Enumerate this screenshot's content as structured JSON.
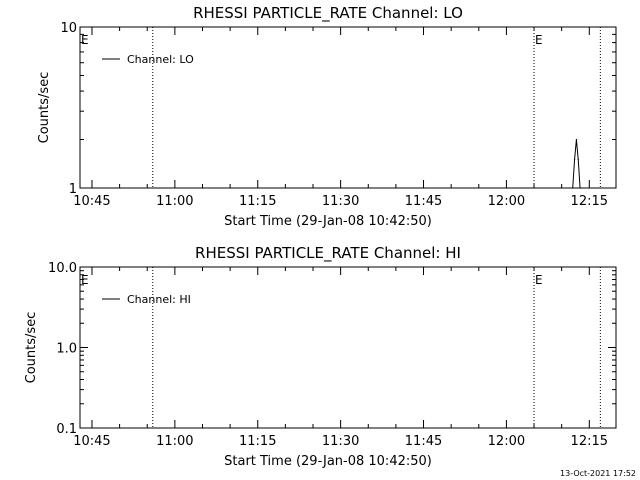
{
  "chart_data": [
    {
      "type": "line",
      "title": "RHESSI PARTICLE_RATE Channel: LO",
      "ylabel": "Counts/sec",
      "xlabel": "Start Time (29-Jan-08 10:42:50)",
      "y_scale": "log",
      "ylim": [
        1,
        10
      ],
      "y_ticks": [
        {
          "value": 1,
          "label": "1"
        },
        {
          "value": 10,
          "label": "10"
        }
      ],
      "xlim_minutes_after_start": [
        0,
        97
      ],
      "x_ticks": [
        "10:45",
        "11:00",
        "11:15",
        "11:30",
        "11:45",
        "12:00",
        "12:15"
      ],
      "legend": {
        "label": "Channel: LO",
        "position": "top-left"
      },
      "flag_marks": [
        {
          "label": "E",
          "time": "10:42:50"
        },
        {
          "label": "E",
          "time": "12:05"
        }
      ],
      "dotted_time_lines": [
        "10:56",
        "12:05",
        "12:17"
      ],
      "series": [
        {
          "name": "Channel: LO",
          "x": [
            "12:12",
            "12:12:20",
            "12:12:40",
            "12:13:00",
            "12:13:20"
          ],
          "values": [
            1,
            1.5,
            2,
            1.5,
            1
          ]
        }
      ]
    },
    {
      "type": "line",
      "title": "RHESSI PARTICLE_RATE Channel: HI",
      "ylabel": "Counts/sec",
      "xlabel": "Start Time (29-Jan-08 10:42:50)",
      "y_scale": "log",
      "ylim": [
        0.1,
        10
      ],
      "y_ticks": [
        {
          "value": 0.1,
          "label": "0.1"
        },
        {
          "value": 1,
          "label": "1.0"
        },
        {
          "value": 10,
          "label": "10.0"
        }
      ],
      "xlim_minutes_after_start": [
        0,
        97
      ],
      "x_ticks": [
        "10:45",
        "11:00",
        "11:15",
        "11:30",
        "11:45",
        "12:00",
        "12:15"
      ],
      "legend": {
        "label": "Channel: HI",
        "position": "top-left"
      },
      "flag_marks": [
        {
          "label": "E",
          "time": "10:42:50"
        },
        {
          "label": "E",
          "time": "12:05"
        }
      ],
      "dotted_time_lines": [
        "10:56",
        "12:05",
        "12:17"
      ],
      "series": [
        {
          "name": "Channel: HI",
          "x": [],
          "values": []
        }
      ]
    }
  ],
  "footer": {
    "timestamp": "13-Oct-2021 17:52"
  }
}
